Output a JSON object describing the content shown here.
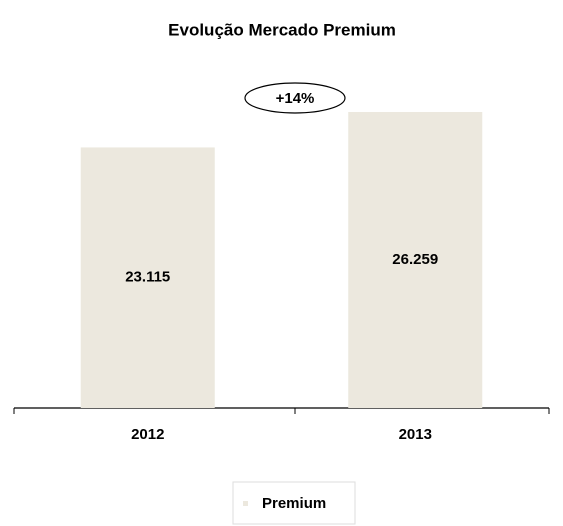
{
  "chart_data": {
    "type": "bar",
    "title": "Evolução Mercado Premium",
    "categories": [
      "2012",
      "2013"
    ],
    "series": [
      {
        "name": "Premium",
        "color": "#ece8de",
        "values": [
          23115,
          26259
        ],
        "value_labels": [
          "23.115",
          "26.259"
        ]
      }
    ],
    "annotations": [
      "+14%"
    ]
  }
}
